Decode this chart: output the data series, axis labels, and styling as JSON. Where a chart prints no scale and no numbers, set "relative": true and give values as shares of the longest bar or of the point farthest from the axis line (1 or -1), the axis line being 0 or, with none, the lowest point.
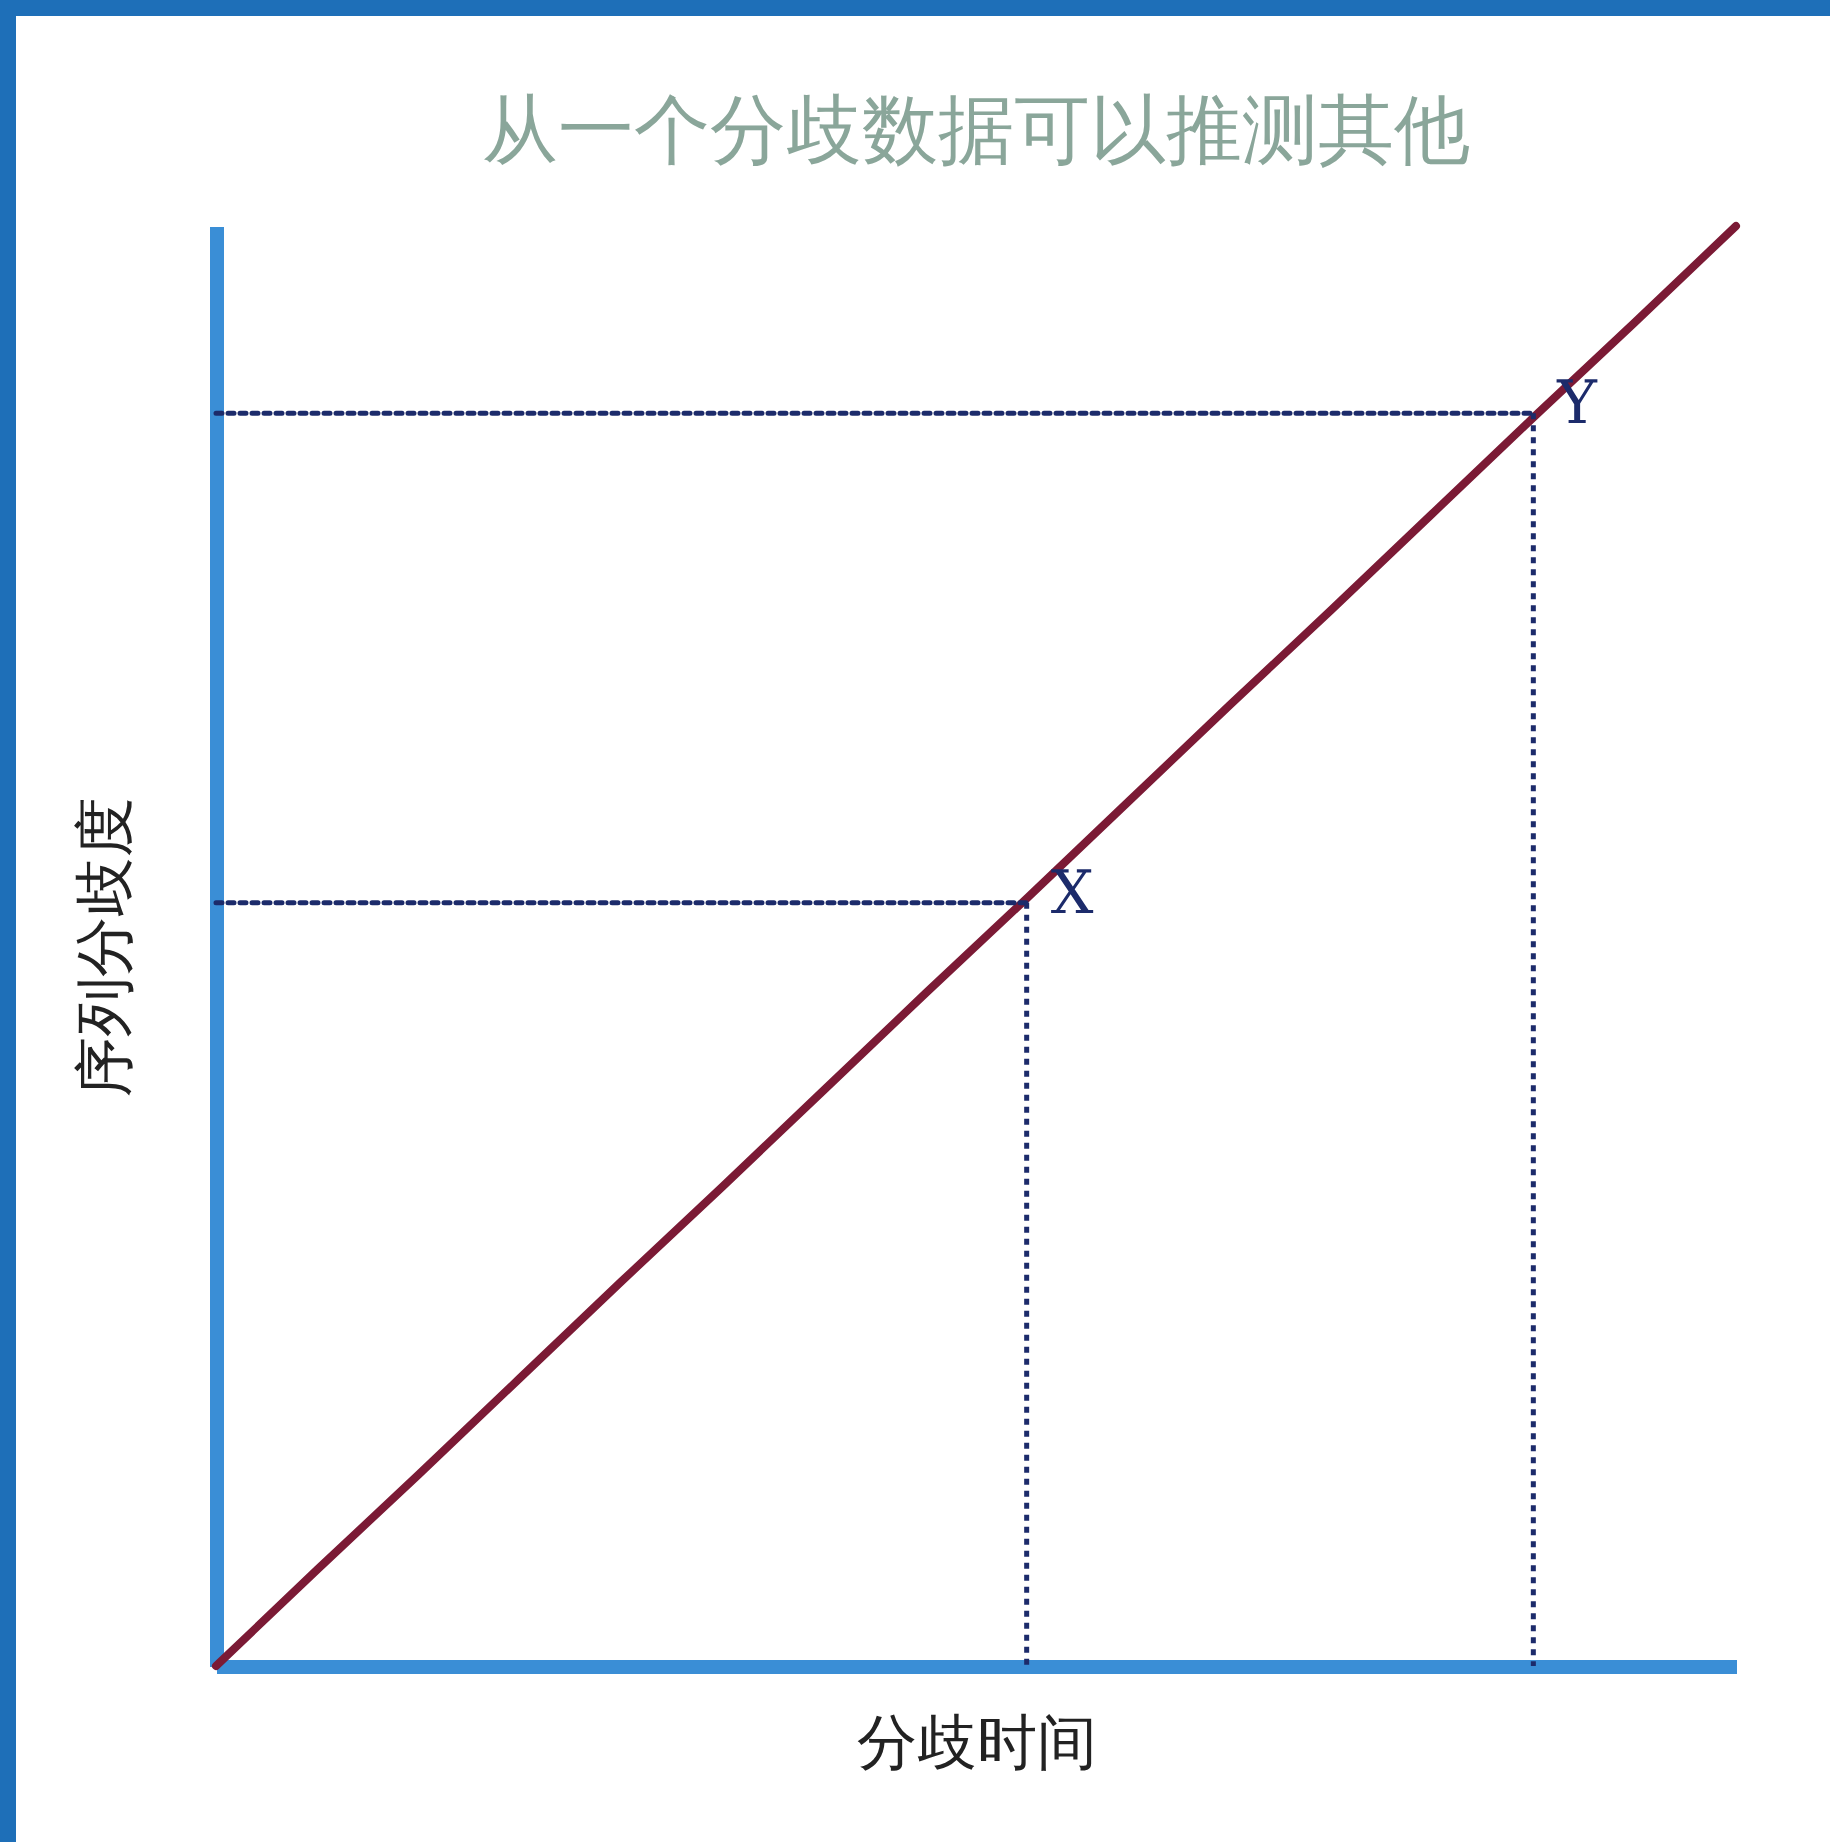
{
  "chart_data": {
    "type": "line",
    "title": "从一个分歧数据可以推测其他",
    "xlabel": "分歧时间",
    "ylabel": "序列分歧度",
    "relative": true,
    "categories": [
      null,
      null,
      null,
      null,
      null,
      null,
      null,
      null,
      null,
      null,
      null,
      null,
      null,
      null,
      null,
      null
    ],
    "series": [
      {
        "color": "#7b1a35",
        "values": [
          0,
          0.067,
          0.133,
          0.2,
          0.267,
          0.333,
          0.4,
          0.467,
          0.533,
          0.6,
          0.667,
          0.733,
          0.8,
          0.867,
          0.933,
          1
        ]
      },
      {
        "color": "#1c2b6b",
        "line_style": "dotted",
        "values": [
          0.53,
          0.53,
          0.53,
          0.53,
          0.53,
          0.53,
          0.53,
          0.53,
          0.53,
          null,
          null,
          null,
          null,
          null,
          null,
          null
        ]
      },
      {
        "color": "#1c2b6b",
        "line_style": "dotted",
        "values": [
          0.87,
          0.87,
          0.87,
          0.87,
          0.87,
          0.87,
          0.87,
          0.87,
          0.87,
          0.87,
          0.87,
          0.87,
          0.87,
          0.87,
          null,
          null
        ]
      }
    ],
    "annotations": [
      "X",
      "Y"
    ]
  }
}
